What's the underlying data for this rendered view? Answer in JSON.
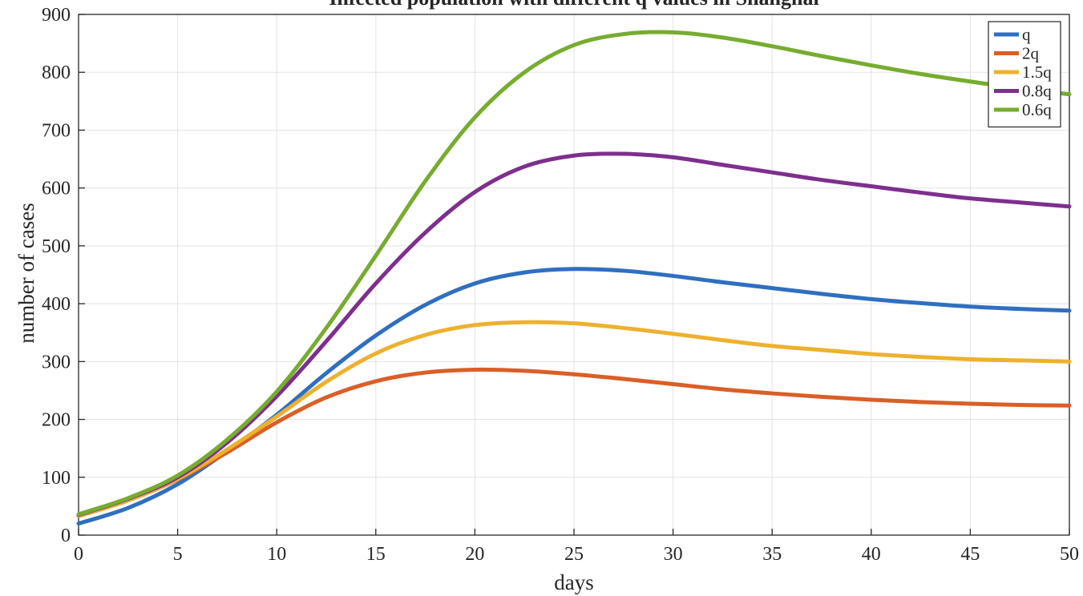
{
  "chart_data": {
    "type": "line",
    "title": "Infected population with different q values in Shanghai",
    "xlabel": "days",
    "ylabel": "number of cases",
    "xlim": [
      0,
      50
    ],
    "ylim": [
      0,
      900
    ],
    "xticks": [
      0,
      5,
      10,
      15,
      20,
      25,
      30,
      35,
      40,
      45,
      50
    ],
    "yticks": [
      0,
      100,
      200,
      300,
      400,
      500,
      600,
      700,
      800,
      900
    ],
    "grid": true,
    "legend_position": "top-right",
    "series": [
      {
        "name": "q",
        "color": "#2f6fbf",
        "points": [
          [
            0,
            20
          ],
          [
            2.5,
            47
          ],
          [
            5,
            88
          ],
          [
            7.5,
            145
          ],
          [
            10,
            208
          ],
          [
            12.5,
            280
          ],
          [
            15,
            345
          ],
          [
            17.5,
            398
          ],
          [
            20,
            435
          ],
          [
            22.5,
            454
          ],
          [
            25,
            460
          ],
          [
            27.5,
            457
          ],
          [
            30,
            448
          ],
          [
            32.5,
            437
          ],
          [
            35,
            427
          ],
          [
            37.5,
            417
          ],
          [
            40,
            408
          ],
          [
            42.5,
            401
          ],
          [
            45,
            395
          ],
          [
            47.5,
            391
          ],
          [
            50,
            388
          ]
        ]
      },
      {
        "name": "2q",
        "color": "#d95f28",
        "points": [
          [
            0,
            33
          ],
          [
            2.5,
            60
          ],
          [
            5,
            96
          ],
          [
            7.5,
            143
          ],
          [
            10,
            195
          ],
          [
            12.5,
            238
          ],
          [
            15,
            266
          ],
          [
            17.5,
            281
          ],
          [
            20,
            286
          ],
          [
            22.5,
            284
          ],
          [
            25,
            278
          ],
          [
            27.5,
            270
          ],
          [
            30,
            261
          ],
          [
            32.5,
            252
          ],
          [
            35,
            245
          ],
          [
            37.5,
            239
          ],
          [
            40,
            234
          ],
          [
            42.5,
            230
          ],
          [
            45,
            227
          ],
          [
            47.5,
            225
          ],
          [
            50,
            224
          ]
        ]
      },
      {
        "name": "1.5q",
        "color": "#edb12f",
        "points": [
          [
            0,
            33
          ],
          [
            2.5,
            60
          ],
          [
            5,
            97
          ],
          [
            7.5,
            148
          ],
          [
            10,
            205
          ],
          [
            12.5,
            265
          ],
          [
            15,
            314
          ],
          [
            17.5,
            346
          ],
          [
            20,
            363
          ],
          [
            22.5,
            368
          ],
          [
            25,
            366
          ],
          [
            27.5,
            358
          ],
          [
            30,
            348
          ],
          [
            32.5,
            337
          ],
          [
            35,
            327
          ],
          [
            37.5,
            320
          ],
          [
            40,
            313
          ],
          [
            42.5,
            308
          ],
          [
            45,
            304
          ],
          [
            47.5,
            302
          ],
          [
            50,
            300
          ]
        ]
      },
      {
        "name": "0.8q",
        "color": "#7e2f8e",
        "points": [
          [
            0,
            35
          ],
          [
            2.5,
            63
          ],
          [
            5,
            100
          ],
          [
            7.5,
            160
          ],
          [
            10,
            240
          ],
          [
            12.5,
            335
          ],
          [
            15,
            435
          ],
          [
            17.5,
            523
          ],
          [
            20,
            593
          ],
          [
            22.5,
            637
          ],
          [
            25,
            656
          ],
          [
            27.5,
            659
          ],
          [
            30,
            653
          ],
          [
            32.5,
            640
          ],
          [
            35,
            627
          ],
          [
            37.5,
            614
          ],
          [
            40,
            603
          ],
          [
            42.5,
            592
          ],
          [
            45,
            582
          ],
          [
            47.5,
            575
          ],
          [
            50,
            568
          ]
        ]
      },
      {
        "name": "0.6q",
        "color": "#77ac30",
        "points": [
          [
            0,
            36
          ],
          [
            2.5,
            64
          ],
          [
            5,
            103
          ],
          [
            7.5,
            165
          ],
          [
            10,
            248
          ],
          [
            12.5,
            358
          ],
          [
            15,
            483
          ],
          [
            17.5,
            612
          ],
          [
            20,
            722
          ],
          [
            22.5,
            800
          ],
          [
            25,
            847
          ],
          [
            27.5,
            866
          ],
          [
            30,
            869
          ],
          [
            32.5,
            860
          ],
          [
            35,
            845
          ],
          [
            37.5,
            828
          ],
          [
            40,
            812
          ],
          [
            42.5,
            797
          ],
          [
            45,
            784
          ],
          [
            47.5,
            772
          ],
          [
            50,
            762
          ]
        ]
      }
    ]
  }
}
